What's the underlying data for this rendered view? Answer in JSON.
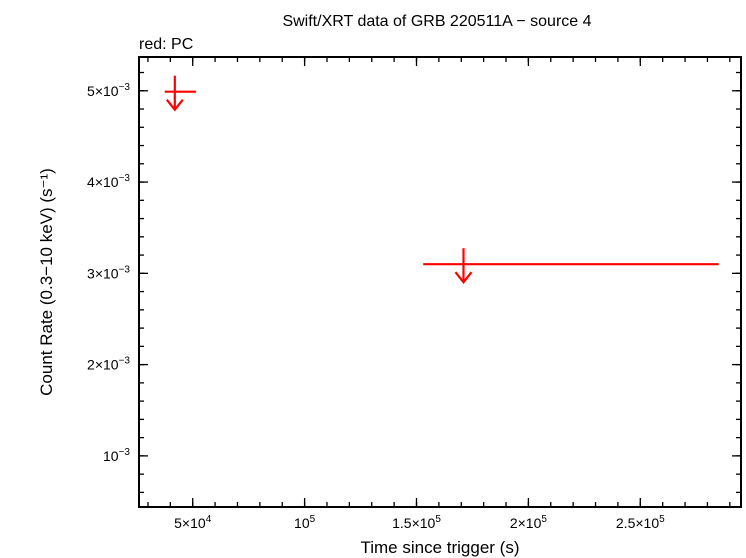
{
  "chart_data": {
    "type": "scatter",
    "title": "Swift/XRT data of GRB 220511A − source 4",
    "subtitle": "red: PC",
    "xlabel": "Time since trigger (s)",
    "ylabel": "Count Rate (0.3−10 keV) (s⁻¹)",
    "xlim": [
      26000,
      295000
    ],
    "ylim": [
      0.00044,
      0.00537
    ],
    "x_ticks": [
      {
        "value": 50000,
        "mant": "5×10",
        "exp": "4"
      },
      {
        "value": 100000,
        "mant": "10",
        "exp": "5"
      },
      {
        "value": 150000,
        "mant": "1.5×10",
        "exp": "5"
      },
      {
        "value": 200000,
        "mant": "2×10",
        "exp": "5"
      },
      {
        "value": 250000,
        "mant": "2.5×10",
        "exp": "5"
      }
    ],
    "y_ticks": [
      {
        "value": 0.001,
        "mant": "10",
        "exp": "−3"
      },
      {
        "value": 0.002,
        "mant": "2×10",
        "exp": "−3"
      },
      {
        "value": 0.003,
        "mant": "3×10",
        "exp": "−3"
      },
      {
        "value": 0.004,
        "mant": "4×10",
        "exp": "−3"
      },
      {
        "value": 0.005,
        "mant": "5×10",
        "exp": "−3"
      }
    ],
    "series": [
      {
        "mode": "PC",
        "color": "#ff0000",
        "upper_limits": [
          {
            "x": 42000,
            "x_lo": 37500,
            "x_hi": 51500,
            "y": 0.00499
          },
          {
            "x": 171000,
            "x_lo": 153000,
            "x_hi": 285000,
            "y": 0.0031
          }
        ]
      }
    ]
  }
}
